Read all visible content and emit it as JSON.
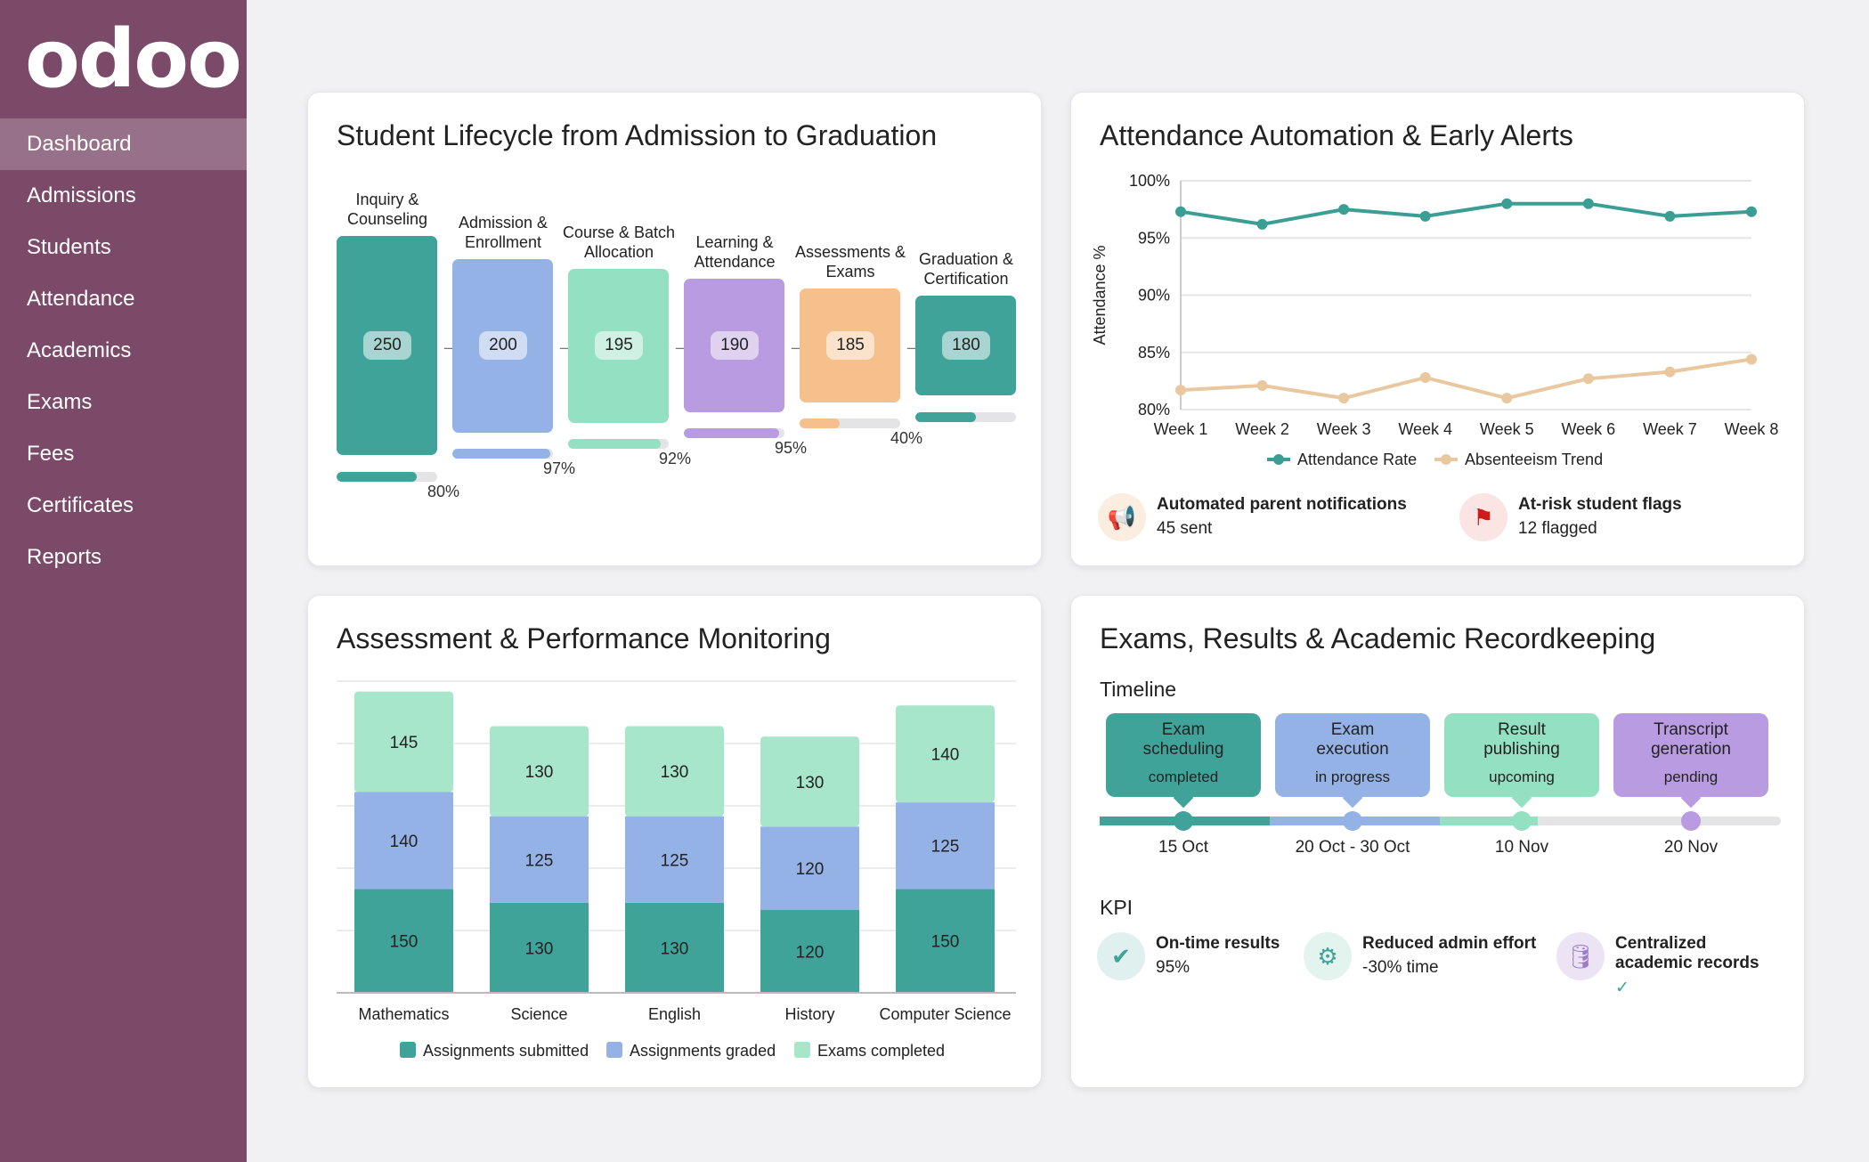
{
  "app": {
    "logo": "odoo"
  },
  "sidebar": {
    "items": [
      {
        "label": "Dashboard",
        "active": true
      },
      {
        "label": "Admissions"
      },
      {
        "label": "Students"
      },
      {
        "label": "Attendance"
      },
      {
        "label": "Academics"
      },
      {
        "label": "Exams"
      },
      {
        "label": "Fees"
      },
      {
        "label": "Certificates"
      },
      {
        "label": "Reports"
      }
    ]
  },
  "lifecycle": {
    "title": "Student Lifecycle from Admission to Graduation",
    "stages": [
      {
        "label": "Inquiry & Counseling",
        "count": "250",
        "pct": "80%",
        "pct_value": 80,
        "color": "#3fa39a"
      },
      {
        "label": "Admission & Enrollment",
        "count": "200",
        "pct": "97%",
        "pct_value": 97,
        "color": "#94b2e6"
      },
      {
        "label": "Course & Batch Allocation",
        "count": "195",
        "pct": "92%",
        "pct_value": 92,
        "color": "#93e0c2"
      },
      {
        "label": "Learning & Attendance",
        "count": "190",
        "pct": "95%",
        "pct_value": 95,
        "color": "#b89be0"
      },
      {
        "label": "Assessments & Exams",
        "count": "185",
        "pct": "40%",
        "pct_value": 40,
        "color": "#f5c08c"
      },
      {
        "label": "Graduation & Certification",
        "count": "180",
        "pct": "",
        "pct_value": 60,
        "color": "#3fa39a"
      }
    ]
  },
  "attendance": {
    "title": "Attendance Automation & Early Alerts",
    "notifications": {
      "icon": "megaphone-icon",
      "label": "Automated parent notifications",
      "value": "45 sent"
    },
    "flags": {
      "icon": "flag-icon",
      "label": "At-risk student flags",
      "value": "12 flagged"
    }
  },
  "assessment": {
    "title": "Assessment & Performance Monitoring"
  },
  "exams": {
    "title": "Exams, Results & Academic Recordkeeping",
    "timeline_label": "Timeline",
    "timeline": [
      {
        "label": "Exam scheduling",
        "status": "completed",
        "date": "15 Oct",
        "color": "#3fa39a"
      },
      {
        "label": "Exam execution",
        "status": "in progress",
        "date": "20 Oct - 30 Oct",
        "color": "#94b2e6"
      },
      {
        "label": "Result publishing",
        "status": "upcoming",
        "date": "10 Nov",
        "color": "#93e0c2"
      },
      {
        "label": "Transcript generation",
        "status": "pending",
        "date": "20 Nov",
        "color": "#b89be0"
      }
    ],
    "kpi_label": "KPI",
    "kpis": [
      {
        "icon": "check-circle-icon",
        "label": "On-time results",
        "value": "95%"
      },
      {
        "icon": "gear-icon",
        "label": "Reduced admin effort",
        "value": "-30% time"
      },
      {
        "icon": "database-icon",
        "label": "Centralized academic records",
        "value": "✓"
      }
    ]
  },
  "chart_data": [
    {
      "type": "line",
      "ylabel": "Attendance %",
      "ylim": [
        80,
        100
      ],
      "yticks": [
        "80%",
        "85%",
        "90%",
        "95%",
        "100%"
      ],
      "grid": true,
      "legend": "bottom",
      "categories": [
        "Week 1",
        "Week 2",
        "Week 3",
        "Week 4",
        "Week 5",
        "Week 6",
        "Week 7",
        "Week 8"
      ],
      "series": [
        {
          "name": "Attendance Rate",
          "color": "#3a9e94",
          "values": [
            97.3,
            96.2,
            97.5,
            96.9,
            98.0,
            98.0,
            96.9,
            97.3
          ]
        },
        {
          "name": "Absenteeism Trend",
          "color": "#e9c8a0",
          "values": [
            81.7,
            82.1,
            81.0,
            82.8,
            81.0,
            82.7,
            83.3,
            84.4
          ]
        }
      ]
    },
    {
      "type": "bar",
      "stacked": true,
      "ylim": [
        0,
        450
      ],
      "grid": true,
      "legend": "bottom",
      "categories": [
        "Mathematics",
        "Science",
        "English",
        "History",
        "Computer Science"
      ],
      "series": [
        {
          "name": "Assignments submitted",
          "color": "#3fa39a",
          "values": [
            150,
            130,
            130,
            120,
            150
          ]
        },
        {
          "name": "Assignments graded",
          "color": "#94b2e6",
          "values": [
            140,
            125,
            125,
            120,
            125
          ]
        },
        {
          "name": "Exams completed",
          "color": "#a8e6cc",
          "values": [
            145,
            130,
            130,
            130,
            140
          ]
        }
      ]
    }
  ]
}
